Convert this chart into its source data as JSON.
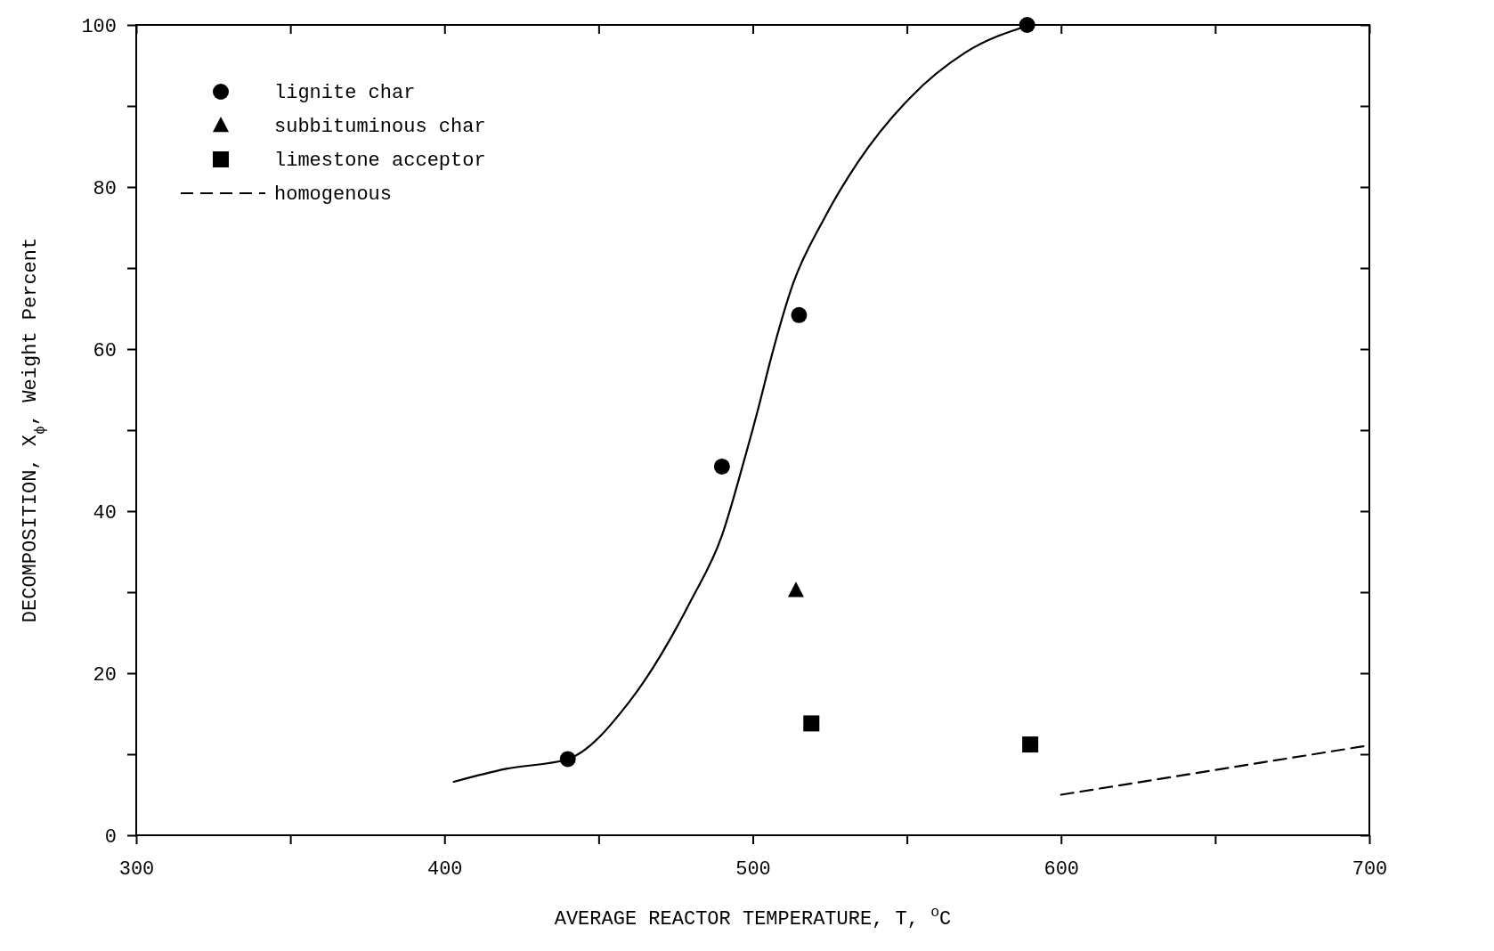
{
  "chart_data": {
    "type": "scatter",
    "xlabel": "AVERAGE REACTOR TEMPERATURE, T, $^{o}$C",
    "ylabel": "DECOMPOSITION, X$_{ϕ}$, Weight Percent",
    "xlim": [
      300,
      700
    ],
    "ylim": [
      0,
      100
    ],
    "xticks": [
      300,
      {
        "value": 350,
        "label": null
      },
      400,
      {
        "value": 450,
        "label": null
      },
      500,
      {
        "value": 550,
        "label": null
      },
      600,
      {
        "value": 650,
        "label": null
      },
      700
    ],
    "yticks": [
      0,
      {
        "value": 10,
        "label": null
      },
      20,
      {
        "value": 30,
        "label": null
      },
      40,
      {
        "value": 50,
        "label": null
      },
      60,
      {
        "value": 70,
        "label": null
      },
      80,
      {
        "value": 90,
        "label": null
      },
      100
    ],
    "grid": false,
    "legend": "top left",
    "series": [
      {
        "name": "lignite char",
        "marker": "circle",
        "color": "#000000",
        "x": [
          440,
          490,
          515,
          589
        ],
        "values": [
          9.4,
          45.5,
          64.2,
          100
        ]
      },
      {
        "name": "subbituminous char",
        "marker": "triangle",
        "color": "#000000",
        "x": [
          514
        ],
        "values": [
          30.2
        ]
      },
      {
        "name": "limestone acceptor",
        "marker": "square",
        "color": "#000000",
        "x": [
          519,
          590
        ],
        "values": [
          13.8,
          11.2
        ]
      },
      {
        "name": "homogenous",
        "type": "line",
        "line_style": "dashed",
        "color": "#000000",
        "x": [
          600,
          700
        ],
        "values": [
          5.0,
          11.1
        ]
      },
      {
        "type": "line",
        "line_style": "solid",
        "color": "#000000",
        "x": [
          403,
          420,
          440,
          460,
          480,
          490,
          497,
          502,
          506,
          513,
          523,
          534,
          551,
          569,
          590
        ],
        "values": [
          6.6,
          8.2,
          9.4,
          16.5,
          29,
          37,
          46,
          53,
          59,
          68,
          76,
          83,
          91,
          96.6,
          100
        ]
      }
    ]
  }
}
